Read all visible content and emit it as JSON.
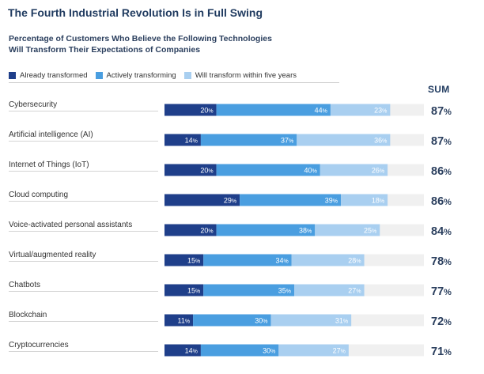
{
  "title": "The Fourth Industrial Revolution Is in Full Swing",
  "subtitle_line1": "Percentage of Customers Who Believe the Following Technologies",
  "subtitle_line2": "Will Transform Their Expectations of Companies",
  "sum_header": "SUM",
  "colors": {
    "already": "#1f3f8a",
    "actively": "#4a9ee0",
    "five_years": "#a9cff0",
    "track": "#f0f0f0"
  },
  "chart_data": {
    "type": "bar",
    "stacked": true,
    "orientation": "horizontal",
    "title": "The Fourth Industrial Revolution Is in Full Swing",
    "subtitle": "Percentage of Customers Who Believe the Following Technologies Will Transform Their Expectations of Companies",
    "xlim": [
      0,
      100
    ],
    "legend_position": "top-left",
    "categories": [
      "Cybersecurity",
      "Artificial intelligence (AI)",
      "Internet of Things (IoT)",
      "Cloud computing",
      "Voice-activated personal assistants",
      "Virtual/augmented reality",
      "Chatbots",
      "Blockchain",
      "Cryptocurrencies"
    ],
    "series": [
      {
        "name": "Already transformed",
        "values": [
          20,
          14,
          20,
          29,
          20,
          15,
          15,
          11,
          14
        ]
      },
      {
        "name": "Actively transforming",
        "values": [
          44,
          37,
          40,
          39,
          38,
          34,
          35,
          30,
          30
        ]
      },
      {
        "name": "Will transform within five years",
        "values": [
          23,
          36,
          26,
          18,
          25,
          28,
          27,
          31,
          27
        ]
      }
    ],
    "sum": [
      87,
      87,
      86,
      86,
      84,
      78,
      77,
      72,
      71
    ],
    "value_suffix": "%"
  }
}
